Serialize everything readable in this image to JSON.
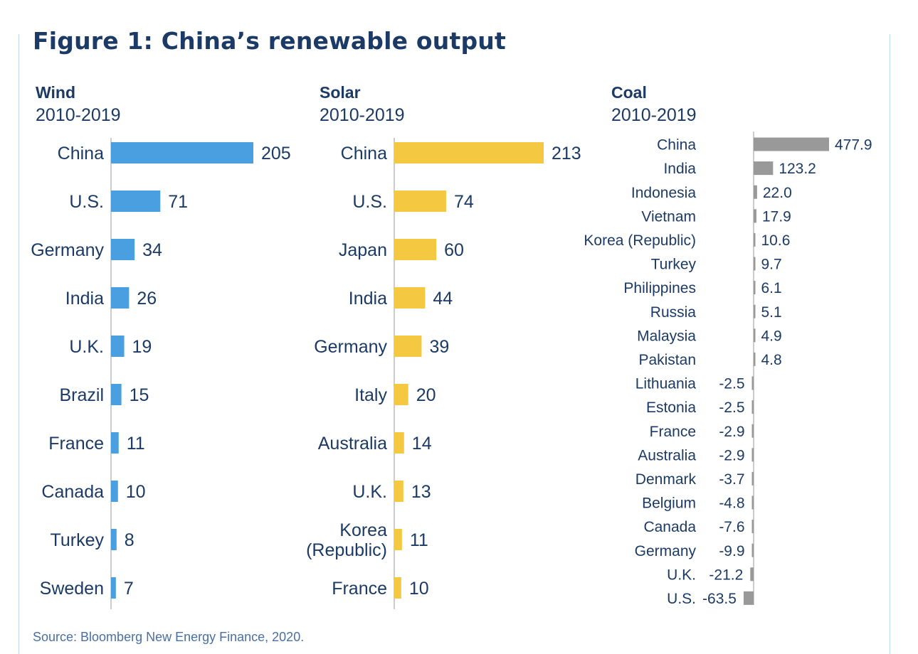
{
  "figure": {
    "title": "Figure 1: China’s renewable output",
    "source": "Source: Bloomberg New Energy Finance, 2020."
  },
  "colors": {
    "wind": "#4a9fe0",
    "solar": "#f5c842",
    "coal": "#999999",
    "text": "#1b3a66",
    "axis": "#bcbcbc",
    "frame": "#bcdcef"
  },
  "chart_data": [
    {
      "type": "bar",
      "orientation": "horizontal",
      "title": "Wind",
      "subtitle": "2010-2019",
      "categories": [
        "China",
        "U.S.",
        "Germany",
        "India",
        "U.K.",
        "Brazil",
        "France",
        "Canada",
        "Turkey",
        "Sweden"
      ],
      "values": [
        205,
        71,
        34,
        26,
        19,
        15,
        11,
        10,
        8,
        7
      ],
      "value_labels": [
        "205",
        "71",
        "34",
        "26",
        "19",
        "15",
        "11",
        "10",
        "8",
        "7"
      ]
    },
    {
      "type": "bar",
      "orientation": "horizontal",
      "title": "Solar",
      "subtitle": "2010-2019",
      "categories": [
        "China",
        "U.S.",
        "Japan",
        "India",
        "Germany",
        "Italy",
        "Australia",
        "U.K.",
        "Korea (Republic)",
        "France"
      ],
      "values": [
        213,
        74,
        60,
        44,
        39,
        20,
        14,
        13,
        11,
        10
      ],
      "value_labels": [
        "213",
        "74",
        "60",
        "44",
        "39",
        "20",
        "14",
        "13",
        "11",
        "10"
      ]
    },
    {
      "type": "bar",
      "orientation": "horizontal",
      "title": "Coal",
      "subtitle": "2010-2019",
      "categories": [
        "China",
        "India",
        "Indonesia",
        "Vietnam",
        "Korea (Republic)",
        "Turkey",
        "Philippines",
        "Russia",
        "Malaysia",
        "Pakistan",
        "Lithuania",
        "Estonia",
        "France",
        "Australia",
        "Denmark",
        "Belgium",
        "Canada",
        "Germany",
        "U.K.",
        "U.S."
      ],
      "values": [
        477.9,
        123.2,
        22.0,
        17.9,
        10.6,
        9.7,
        6.1,
        5.1,
        4.9,
        4.8,
        -2.5,
        -2.5,
        -2.9,
        -2.9,
        -3.7,
        -4.8,
        -7.6,
        -9.9,
        -21.2,
        -63.5
      ],
      "value_labels": [
        "477.9",
        "123.2",
        "22.0",
        "17.9",
        "10.6",
        "9.7",
        "6.1",
        "5.1",
        "4.9",
        "4.8",
        "-2.5",
        "-2.5",
        "-2.9",
        "-2.9",
        "-3.7",
        "-4.8",
        "-7.6",
        "-9.9",
        "-21.2",
        "-63.5"
      ]
    }
  ]
}
